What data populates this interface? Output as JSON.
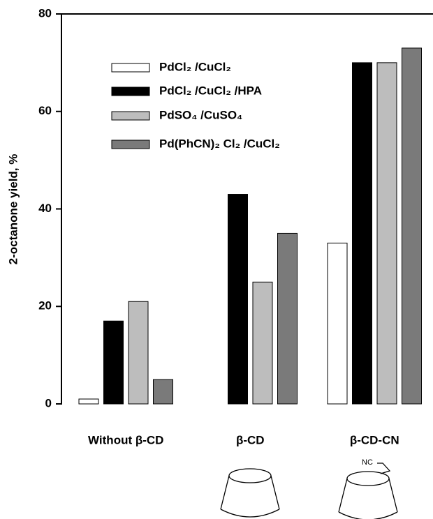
{
  "chart_data": {
    "type": "bar",
    "y_label": "2-octanone yield, %",
    "categories": [
      "Without β-CD",
      "β-CD",
      "β-CD-CN"
    ],
    "series": [
      {
        "name": "PdCl₂ /CuCl₂",
        "color": "#ffffff",
        "values": [
          1,
          null,
          33
        ]
      },
      {
        "name": "PdCl₂ /CuCl₂ /HPA",
        "color": "#000000",
        "values": [
          17,
          43,
          70
        ]
      },
      {
        "name": "PdSO₄ /CuSO₄",
        "color": "#bdbdbd",
        "values": [
          21,
          25,
          70
        ]
      },
      {
        "name": "Pd(PhCN)₂ Cl₂ /CuCl₂",
        "color": "#7a7a7a",
        "values": [
          5,
          35,
          73
        ]
      }
    ],
    "ylim": [
      0,
      80
    ],
    "yticks": [
      0,
      20,
      40,
      60,
      80
    ],
    "structure_label": "NC"
  }
}
